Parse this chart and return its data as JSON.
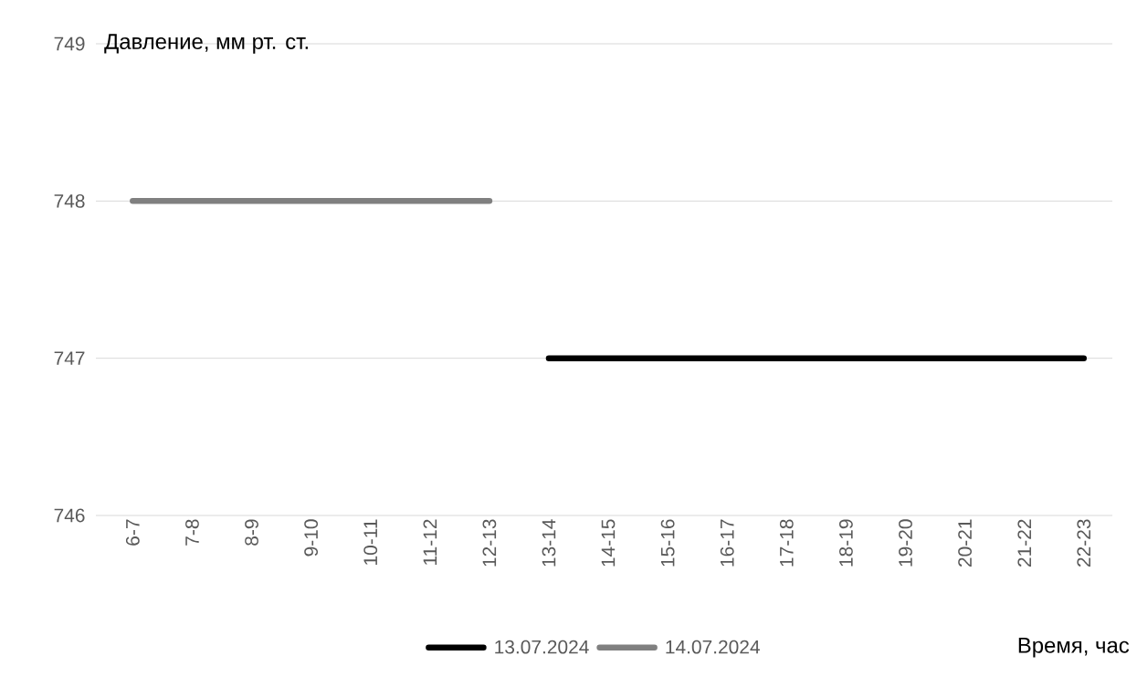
{
  "chart_data": {
    "type": "line",
    "ylabel": "Давление, мм рт. ст.",
    "xlabel": "Время, час",
    "categories": [
      "6-7",
      "7-8",
      "8-9",
      "9-10",
      "10-11",
      "11-12",
      "12-13",
      "13-14",
      "14-15",
      "15-16",
      "16-17",
      "17-18",
      "18-19",
      "19-20",
      "20-21",
      "21-22",
      "22-23"
    ],
    "series": [
      {
        "name": "13.07.2024",
        "color": "#000000",
        "values": [
          null,
          null,
          null,
          null,
          null,
          null,
          null,
          747,
          747,
          747,
          747,
          747,
          747,
          747,
          747,
          747,
          747
        ]
      },
      {
        "name": "14.07.2024",
        "color": "#808080",
        "values": [
          748,
          748,
          748,
          748,
          748,
          748,
          748,
          null,
          null,
          null,
          null,
          null,
          null,
          null,
          null,
          null,
          null
        ]
      }
    ],
    "ylim": [
      746,
      749
    ],
    "yticks": [
      746,
      747,
      748,
      749
    ],
    "grid": "y",
    "legend": "bottom",
    "marker": "none",
    "line_style": "solid"
  }
}
